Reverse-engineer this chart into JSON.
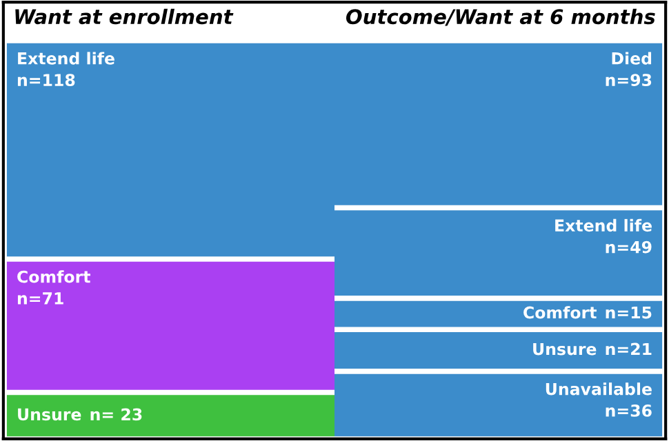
{
  "chart_data": [
    {
      "type": "other",
      "title": "Want at enrollment",
      "categories": [
        "Extend life",
        "Comfort",
        "Unsure"
      ],
      "values": [
        118,
        71,
        23
      ],
      "value_labels": [
        "n=118",
        "n=71",
        "n= 23"
      ],
      "colors": [
        "#1a78c2",
        "#9b1ff0",
        "#1db51d"
      ]
    },
    {
      "type": "other",
      "title": "Outcome/Want at 6 months",
      "categories": [
        "Died",
        "Extend life",
        "Comfort",
        "Unsure",
        "Unavailable"
      ],
      "values": [
        93,
        49,
        15,
        21,
        36
      ],
      "value_labels": [
        "n=93",
        "n=49",
        "n=15",
        "n=21",
        "n=36"
      ],
      "colors": [
        "#1a78c2",
        "#1a78c2",
        "#1a78c2",
        "#1a78c2",
        "#1a78c2"
      ]
    }
  ]
}
